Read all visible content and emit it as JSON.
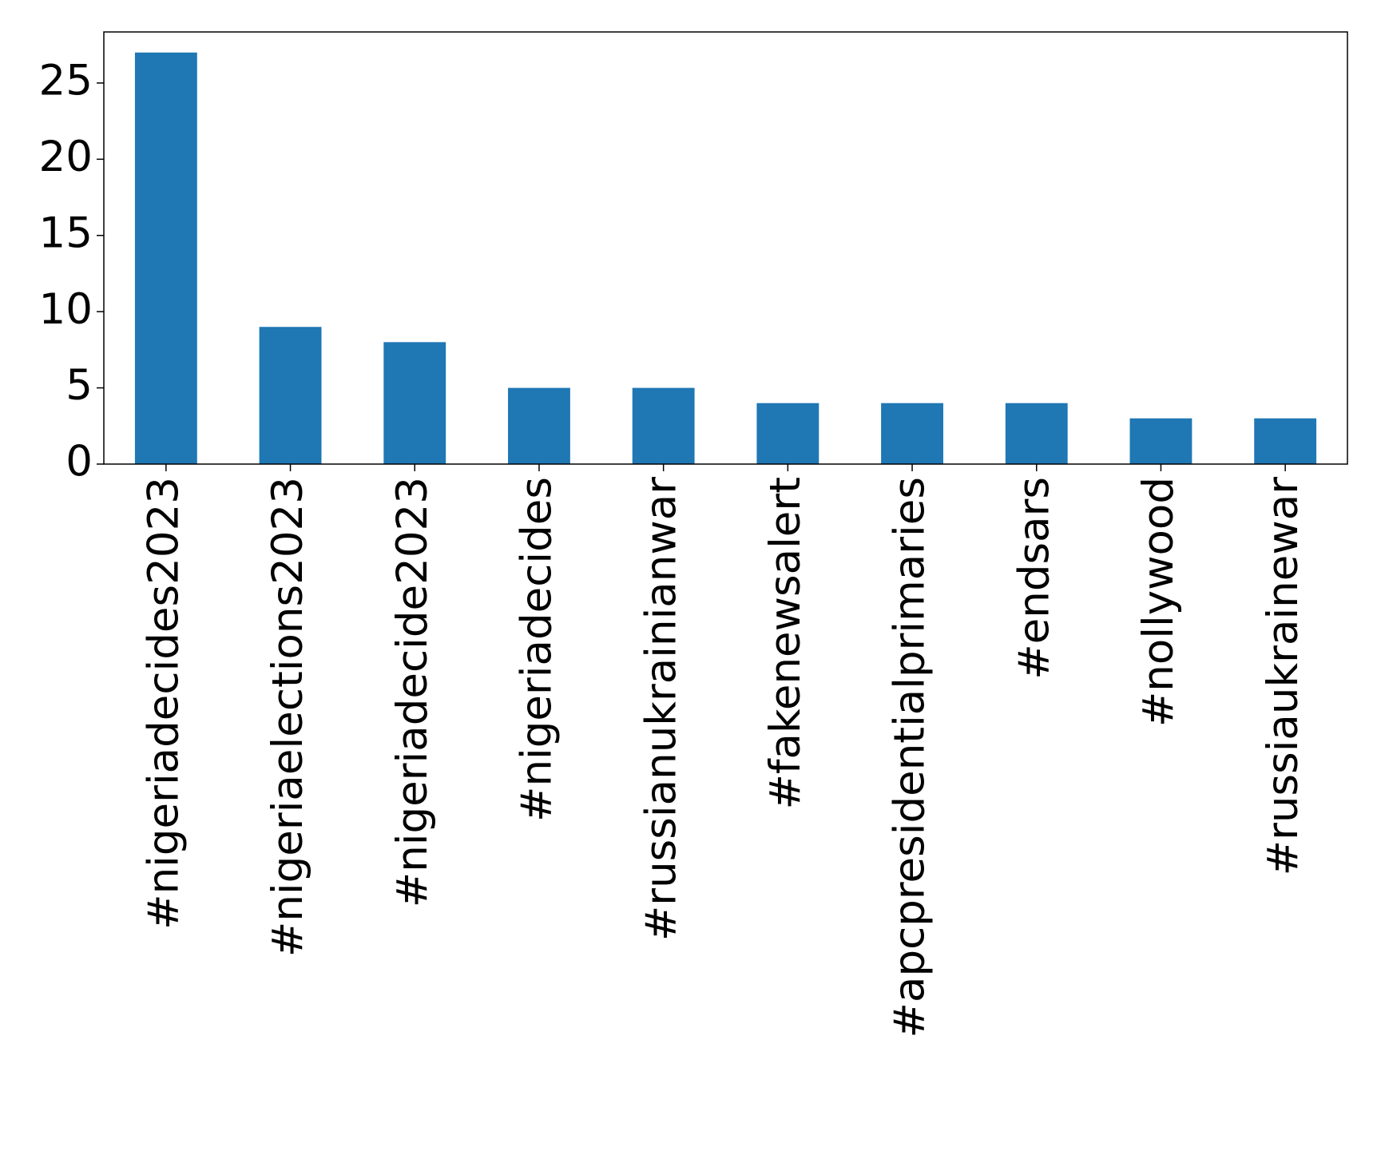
{
  "chart_data": {
    "type": "bar",
    "categories": [
      "#nigeriadecides2023",
      "#nigeriaelections2023",
      "#nigeriadecide2023",
      "#nigeriadecides",
      "#russianukrainianwar",
      "#fakenewsalert",
      "#apcpresidentialprimaries",
      "#endsars",
      "#nollywood",
      "#russiaukrainewar"
    ],
    "values": [
      27,
      9,
      8,
      5,
      5,
      4,
      4,
      4,
      3,
      3
    ],
    "color": "#1f77b4",
    "ylim": [
      0,
      28.35
    ],
    "yticks": [
      0,
      5,
      10,
      15,
      20,
      25
    ],
    "grid": false
  }
}
